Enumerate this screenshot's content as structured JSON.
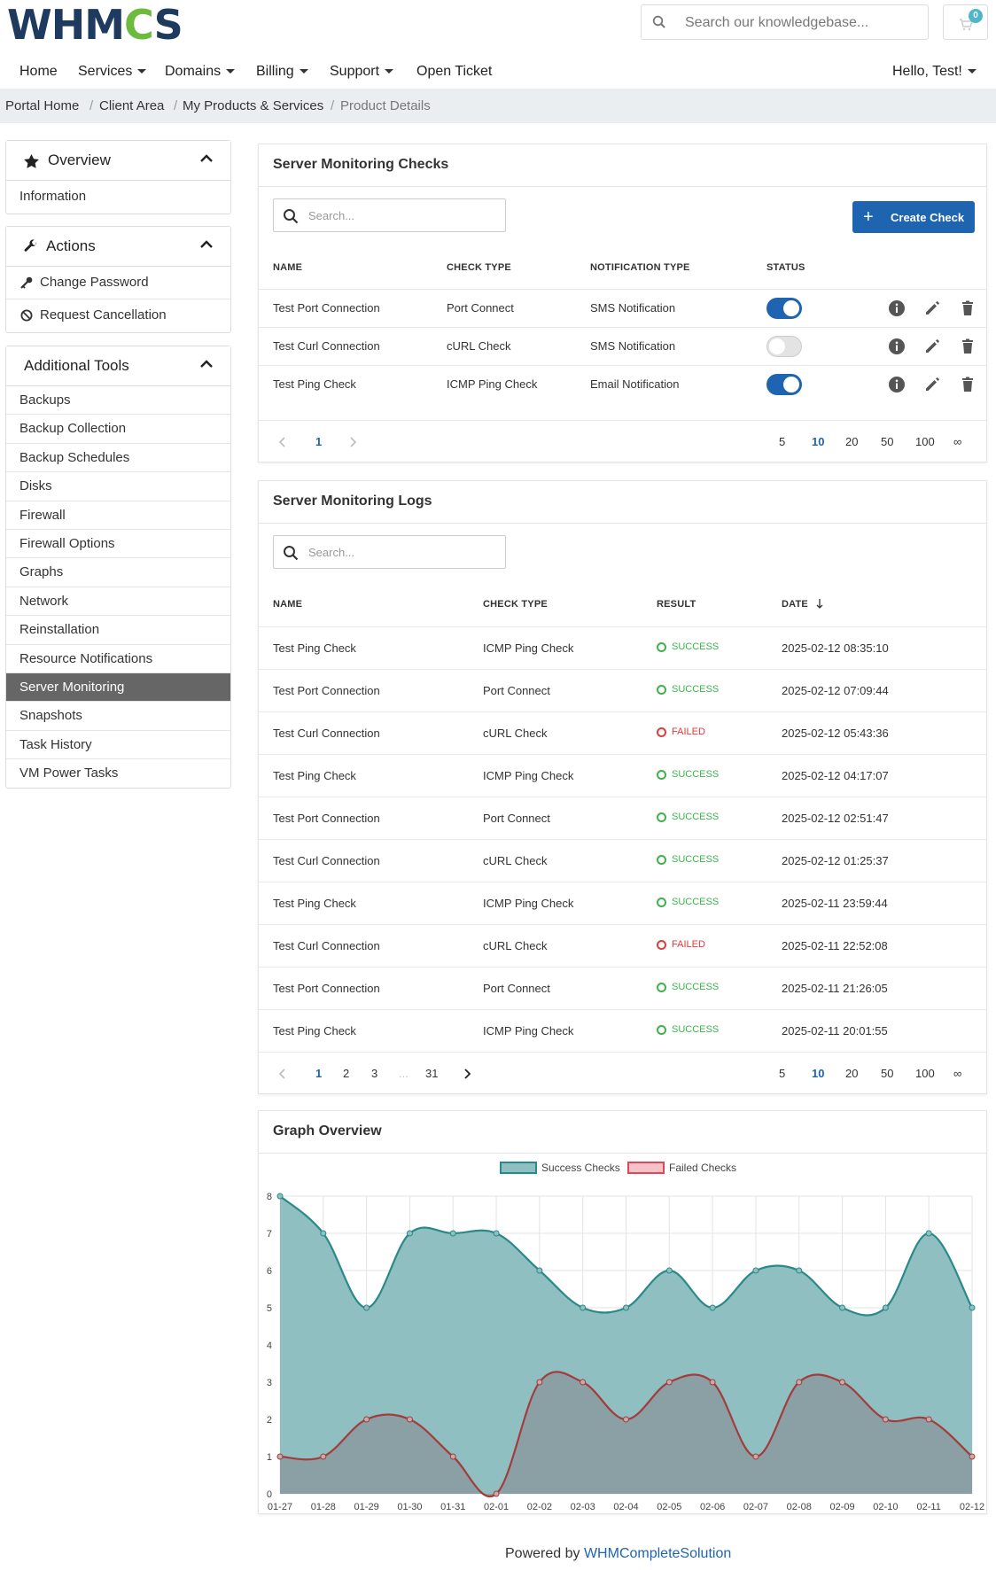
{
  "header": {
    "logo_text": "WHMCS",
    "search_placeholder": "Search our knowledgebase...",
    "cart_count": "0"
  },
  "nav": {
    "items": [
      {
        "label": "Home"
      },
      {
        "label": "Services"
      },
      {
        "label": "Domains"
      },
      {
        "label": "Billing"
      },
      {
        "label": "Support"
      },
      {
        "label": "Open Ticket"
      }
    ],
    "user": "Hello, Test!"
  },
  "breadcrumb": [
    "Portal Home",
    "Client Area",
    "My Products & Services",
    "Product Details"
  ],
  "sidebar": {
    "overview": {
      "title": "Overview",
      "items": [
        "Information"
      ]
    },
    "actions": {
      "title": "Actions",
      "items": [
        "Change Password",
        "Request Cancellation"
      ]
    },
    "tools": {
      "title": "Additional Tools",
      "items": [
        "Backups",
        "Backup Collection",
        "Backup Schedules",
        "Disks",
        "Firewall",
        "Firewall Options",
        "Graphs",
        "Network",
        "Reinstallation",
        "Resource Notifications",
        "Server Monitoring",
        "Snapshots",
        "Task History",
        "VM Power Tasks"
      ],
      "active": "Server Monitoring"
    }
  },
  "checks": {
    "title": "Server Monitoring Checks",
    "search_placeholder": "Search...",
    "create_label": "Create Check",
    "columns": [
      "NAME",
      "CHECK TYPE",
      "NOTIFICATION TYPE",
      "STATUS"
    ],
    "rows": [
      {
        "name": "Test Port Connection",
        "type": "Port Connect",
        "notification": "SMS Notification",
        "enabled": true
      },
      {
        "name": "Test Curl Connection",
        "type": "cURL Check",
        "notification": "SMS Notification",
        "enabled": false
      },
      {
        "name": "Test Ping Check",
        "type": "ICMP Ping Check",
        "notification": "Email Notification",
        "enabled": true
      }
    ],
    "pages": [
      "1"
    ],
    "page_sizes": [
      "5",
      "10",
      "20",
      "50",
      "100",
      "∞"
    ],
    "active_size": "10"
  },
  "logs": {
    "title": "Server Monitoring Logs",
    "search_placeholder": "Search...",
    "columns": [
      "NAME",
      "CHECK TYPE",
      "RESULT",
      "DATE"
    ],
    "rows": [
      {
        "name": "Test Ping Check",
        "type": "ICMP Ping Check",
        "result": "SUCCESS",
        "date": "2025-02-12 08:35:10"
      },
      {
        "name": "Test Port Connection",
        "type": "Port Connect",
        "result": "SUCCESS",
        "date": "2025-02-12 07:09:44"
      },
      {
        "name": "Test Curl Connection",
        "type": "cURL Check",
        "result": "FAILED",
        "date": "2025-02-12 05:43:36"
      },
      {
        "name": "Test Ping Check",
        "type": "ICMP Ping Check",
        "result": "SUCCESS",
        "date": "2025-02-12 04:17:07"
      },
      {
        "name": "Test Port Connection",
        "type": "Port Connect",
        "result": "SUCCESS",
        "date": "2025-02-12 02:51:47"
      },
      {
        "name": "Test Curl Connection",
        "type": "cURL Check",
        "result": "SUCCESS",
        "date": "2025-02-12 01:25:37"
      },
      {
        "name": "Test Ping Check",
        "type": "ICMP Ping Check",
        "result": "SUCCESS",
        "date": "2025-02-11 23:59:44"
      },
      {
        "name": "Test Curl Connection",
        "type": "cURL Check",
        "result": "FAILED",
        "date": "2025-02-11 22:52:08"
      },
      {
        "name": "Test Port Connection",
        "type": "Port Connect",
        "result": "SUCCESS",
        "date": "2025-02-11 21:26:05"
      },
      {
        "name": "Test Ping Check",
        "type": "ICMP Ping Check",
        "result": "SUCCESS",
        "date": "2025-02-11 20:01:55"
      }
    ],
    "pages": [
      "1",
      "2",
      "3",
      "...",
      "31"
    ],
    "page_sizes": [
      "5",
      "10",
      "20",
      "50",
      "100",
      "∞"
    ],
    "active_size": "10"
  },
  "graph": {
    "title": "Graph Overview"
  },
  "chart_data": {
    "type": "area",
    "x": [
      "01-27",
      "01-28",
      "01-29",
      "01-30",
      "01-31",
      "02-01",
      "02-02",
      "02-03",
      "02-04",
      "02-05",
      "02-06",
      "02-07",
      "02-08",
      "02-09",
      "02-10",
      "02-11",
      "02-12"
    ],
    "series": [
      {
        "name": "Success Checks",
        "values": [
          8,
          7,
          5,
          7,
          7,
          7,
          6,
          5,
          5,
          6,
          5,
          6,
          6,
          5,
          5,
          7,
          5
        ],
        "color": "#2a8a8a",
        "fill": "#8fbfc0"
      },
      {
        "name": "Failed Checks",
        "values": [
          1,
          1,
          2,
          2,
          1,
          0,
          3,
          3,
          2,
          3,
          3,
          1,
          3,
          3,
          2,
          2,
          1
        ],
        "color": "#a33c3c",
        "fill": "#8a9ea2"
      }
    ],
    "ylim": [
      0,
      8
    ],
    "yticks": [
      0,
      1,
      2,
      3,
      4,
      5,
      6,
      7,
      8
    ],
    "grid": true,
    "legend": "top-center"
  },
  "footer": {
    "prefix": "Powered by",
    "link": "WHMCompleteSolution"
  }
}
